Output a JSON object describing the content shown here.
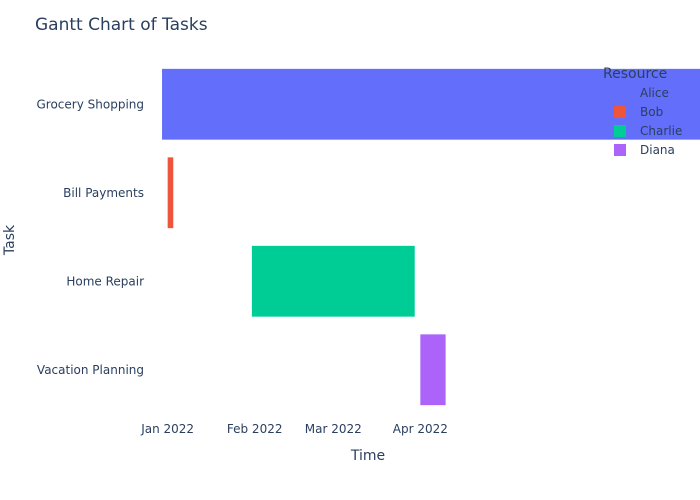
{
  "chart_data": {
    "type": "gantt",
    "title": "Gantt Chart of Tasks",
    "xlabel": "Time",
    "ylabel": "Task",
    "xlim": [
      "2021-12-25",
      "2022-05-30"
    ],
    "x_ticks": [
      {
        "date": "2022-01-01",
        "label": "Jan 2022"
      },
      {
        "date": "2022-02-01",
        "label": "Feb 2022"
      },
      {
        "date": "2022-03-01",
        "label": "Mar 2022"
      },
      {
        "date": "2022-04-01",
        "label": "Apr 2022"
      }
    ],
    "tasks": [
      {
        "task": "Grocery Shopping",
        "start": "2021-12-30",
        "end": "2022-12-31",
        "resource": "Alice"
      },
      {
        "task": "Bill Payments",
        "start": "2022-01-01",
        "end": "2022-01-03",
        "resource": "Bob"
      },
      {
        "task": "Home Repair",
        "start": "2022-01-31",
        "end": "2022-03-30",
        "resource": "Charlie"
      },
      {
        "task": "Vacation Planning",
        "start": "2022-04-01",
        "end": "2022-04-10",
        "resource": "Diana"
      }
    ],
    "legend": {
      "title": "Resource",
      "placement": "top-right",
      "entries": [
        {
          "name": "Alice",
          "color": "#636efa"
        },
        {
          "name": "Bob",
          "color": "#ef553b"
        },
        {
          "name": "Charlie",
          "color": "#00cc96"
        },
        {
          "name": "Diana",
          "color": "#ab63fa"
        }
      ]
    },
    "grid": false
  }
}
